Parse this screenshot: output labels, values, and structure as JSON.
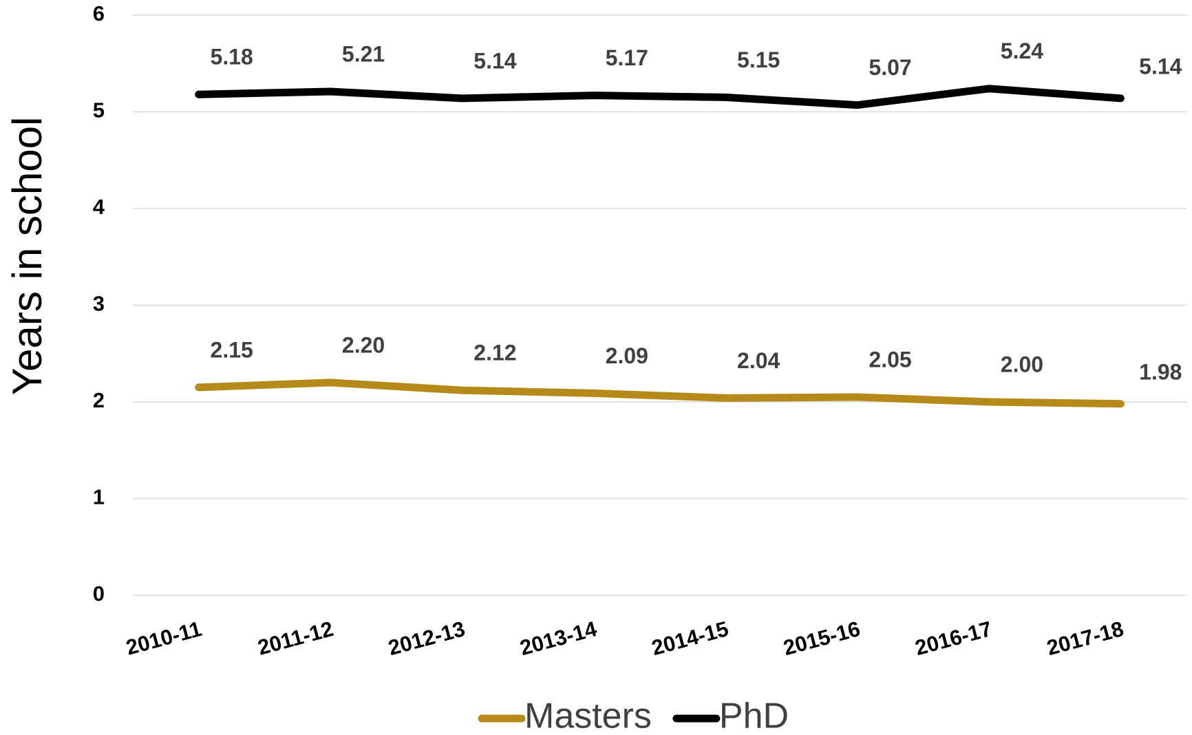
{
  "chart_data": {
    "type": "line",
    "y_label": "Years in school",
    "categories": [
      "2010-11",
      "2011-12",
      "2012-13",
      "2013-14",
      "2014-15",
      "2015-16",
      "2016-17",
      "2017-18"
    ],
    "series": [
      {
        "name": "Masters",
        "color": "#b5891a",
        "values": [
          2.15,
          2.2,
          2.12,
          2.09,
          2.04,
          2.05,
          2.0,
          1.98
        ],
        "value_labels": [
          "2.15",
          "2.20",
          "2.12",
          "2.09",
          "2.04",
          "2.05",
          "2.00",
          "1.98"
        ]
      },
      {
        "name": "PhD",
        "color": "#000000",
        "values": [
          5.18,
          5.21,
          5.14,
          5.17,
          5.15,
          5.07,
          5.24,
          5.14
        ],
        "value_labels": [
          "5.18",
          "5.21",
          "5.14",
          "5.17",
          "5.15",
          "5.07",
          "5.24",
          "5.14"
        ]
      }
    ],
    "ylim": [
      0,
      6
    ],
    "yticks": [
      0,
      1,
      2,
      3,
      4,
      5,
      6
    ],
    "grid": true,
    "legend": "bottom"
  }
}
